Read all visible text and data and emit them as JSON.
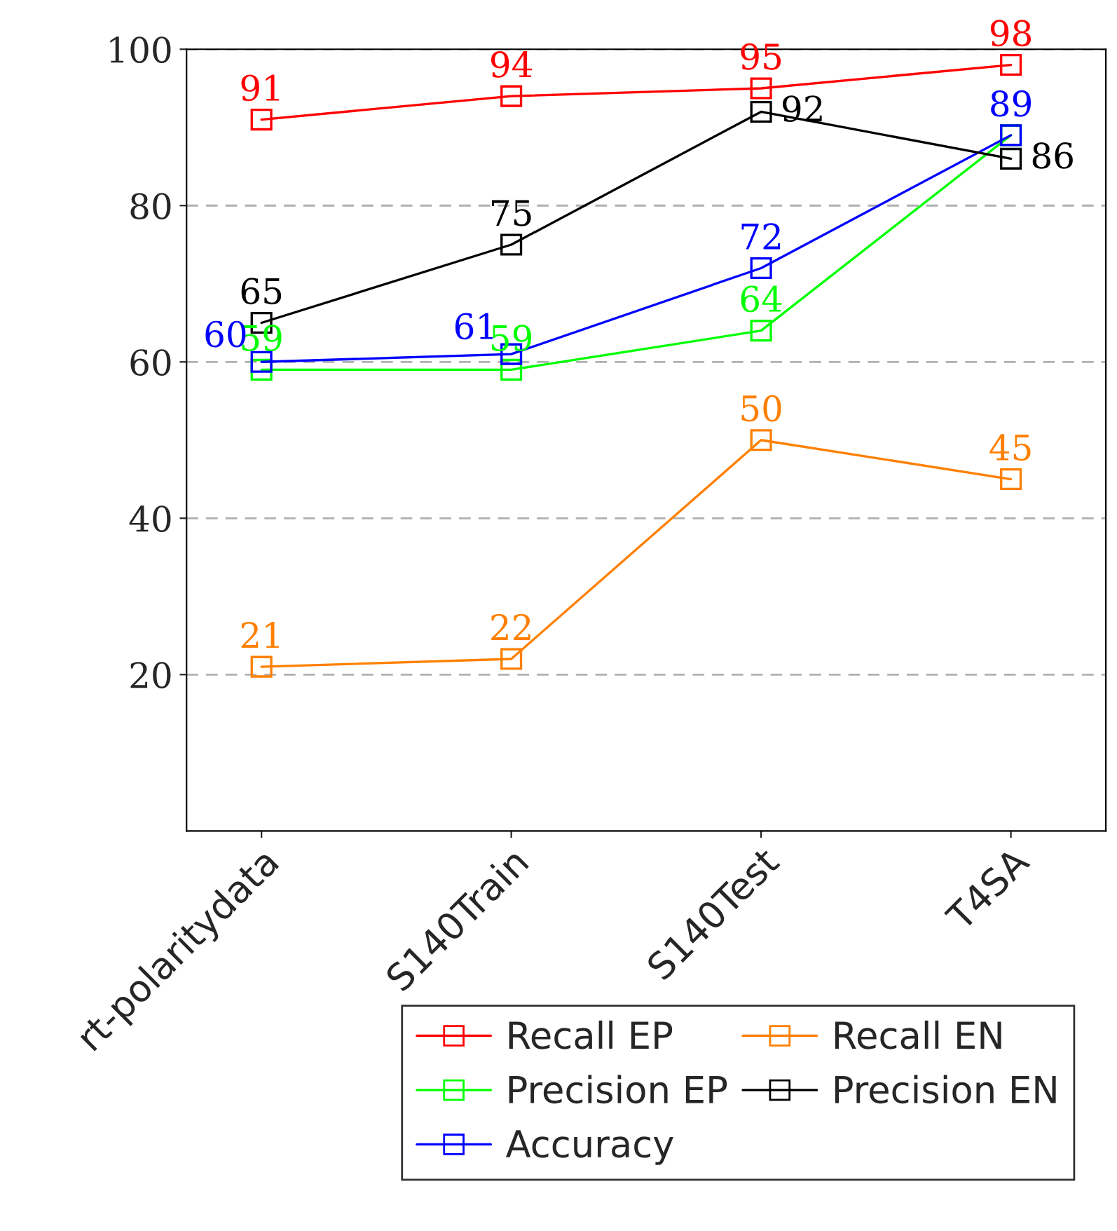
{
  "chart_data": {
    "type": "line",
    "categories": [
      "rt-polaritydata",
      "S140Train",
      "S140Test",
      "T4SA"
    ],
    "series": [
      {
        "name": "Recall EP",
        "color": "#ff0000",
        "values": [
          91,
          94,
          95,
          98
        ],
        "value_labels": [
          "91",
          "94",
          "95",
          "98"
        ]
      },
      {
        "name": "Precision EP",
        "color": "#00ff00",
        "values": [
          59,
          59,
          64,
          89
        ],
        "value_labels": [
          "59",
          "59",
          "64",
          null
        ]
      },
      {
        "name": "Accuracy",
        "color": "#0000ff",
        "values": [
          60,
          61,
          72,
          89
        ],
        "value_labels": [
          "60",
          "61",
          "72",
          "89"
        ]
      },
      {
        "name": "Recall EN",
        "color": "#ff8000",
        "values": [
          21,
          22,
          50,
          45
        ],
        "value_labels": [
          "21",
          "22",
          "50",
          "45"
        ]
      },
      {
        "name": "Precision EN",
        "color": "#000000",
        "values": [
          65,
          75,
          92,
          86
        ],
        "value_labels": [
          "65",
          "75",
          "92",
          "86"
        ]
      }
    ],
    "ylim": [
      0,
      100
    ],
    "yticks": [
      20,
      40,
      60,
      80,
      100
    ],
    "grid": "y",
    "legend": "bottom",
    "marker": "square",
    "line_style": "solid"
  }
}
